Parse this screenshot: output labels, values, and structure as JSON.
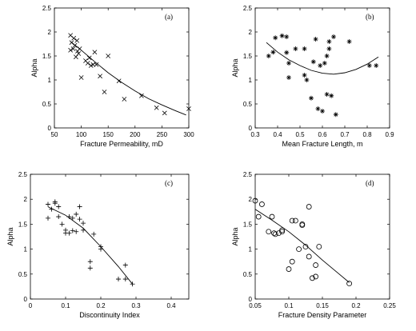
{
  "chart_data": [
    {
      "id": "a",
      "type": "scatter",
      "panel_label": "(a)",
      "xlabel": "Fracture Permeability, mD",
      "ylabel": "Alpha",
      "xlim": [
        50,
        300
      ],
      "ylim": [
        0,
        2.5
      ],
      "xticks": [
        50,
        100,
        150,
        200,
        250,
        300
      ],
      "yticks": [
        0,
        0.5,
        1,
        1.5,
        2,
        2.5
      ],
      "marker": "x",
      "points": [
        [
          80,
          1.93
        ],
        [
          80,
          1.62
        ],
        [
          82,
          1.78
        ],
        [
          85,
          1.65
        ],
        [
          86,
          1.87
        ],
        [
          88,
          1.72
        ],
        [
          90,
          1.48
        ],
        [
          92,
          1.82
        ],
        [
          93,
          1.6
        ],
        [
          95,
          1.55
        ],
        [
          97,
          1.65
        ],
        [
          100,
          1.05
        ],
        [
          108,
          1.4
        ],
        [
          112,
          1.35
        ],
        [
          115,
          1.46
        ],
        [
          118,
          1.3
        ],
        [
          122,
          1.32
        ],
        [
          125,
          1.58
        ],
        [
          128,
          1.32
        ],
        [
          135,
          1.08
        ],
        [
          143,
          0.75
        ],
        [
          150,
          1.5
        ],
        [
          170,
          0.98
        ],
        [
          180,
          0.6
        ],
        [
          212,
          0.67
        ],
        [
          240,
          0.42
        ],
        [
          255,
          0.31
        ],
        [
          300,
          0.4
        ]
      ],
      "fit_line": [
        [
          80,
          1.8
        ],
        [
          100,
          1.62
        ],
        [
          125,
          1.38
        ],
        [
          150,
          1.15
        ],
        [
          175,
          0.95
        ],
        [
          200,
          0.77
        ],
        [
          225,
          0.61
        ],
        [
          250,
          0.48
        ],
        [
          275,
          0.36
        ],
        [
          295,
          0.27
        ]
      ]
    },
    {
      "id": "b",
      "type": "scatter",
      "panel_label": "(b)",
      "xlabel": "Mean Fracture Length, m",
      "ylabel": "Alpha",
      "xlim": [
        0.3,
        0.9
      ],
      "ylim": [
        0,
        2.5
      ],
      "xticks": [
        0.3,
        0.4,
        0.5,
        0.6,
        0.7,
        0.8,
        0.9
      ],
      "yticks": [
        0,
        0.5,
        1,
        1.5,
        2,
        2.5
      ],
      "marker": "*",
      "points": [
        [
          0.36,
          1.5
        ],
        [
          0.38,
          1.58
        ],
        [
          0.39,
          1.88
        ],
        [
          0.42,
          1.92
        ],
        [
          0.44,
          1.9
        ],
        [
          0.44,
          1.57
        ],
        [
          0.45,
          1.05
        ],
        [
          0.45,
          1.35
        ],
        [
          0.48,
          1.65
        ],
        [
          0.52,
          1.65
        ],
        [
          0.52,
          1.1
        ],
        [
          0.53,
          1.0
        ],
        [
          0.55,
          0.62
        ],
        [
          0.56,
          1.38
        ],
        [
          0.57,
          1.85
        ],
        [
          0.58,
          0.4
        ],
        [
          0.59,
          1.3
        ],
        [
          0.6,
          0.35
        ],
        [
          0.61,
          1.35
        ],
        [
          0.62,
          1.5
        ],
        [
          0.62,
          0.7
        ],
        [
          0.63,
          1.65
        ],
        [
          0.63,
          1.8
        ],
        [
          0.64,
          0.67
        ],
        [
          0.65,
          1.9
        ],
        [
          0.66,
          0.28
        ],
        [
          0.72,
          1.8
        ],
        [
          0.81,
          1.3
        ],
        [
          0.84,
          1.3
        ]
      ],
      "fit_line": [
        [
          0.35,
          1.78
        ],
        [
          0.4,
          1.58
        ],
        [
          0.45,
          1.42
        ],
        [
          0.5,
          1.3
        ],
        [
          0.55,
          1.2
        ],
        [
          0.6,
          1.14
        ],
        [
          0.65,
          1.12
        ],
        [
          0.7,
          1.15
        ],
        [
          0.75,
          1.22
        ],
        [
          0.8,
          1.33
        ],
        [
          0.85,
          1.48
        ]
      ]
    },
    {
      "id": "c",
      "type": "scatter",
      "panel_label": "(c)",
      "xlabel": "Discontinuity Index",
      "ylabel": "Alpha",
      "xlim": [
        0,
        0.45
      ],
      "ylim": [
        0,
        2.5
      ],
      "xticks": [
        0,
        0.1,
        0.2,
        0.3,
        0.4
      ],
      "xtick_labels": [
        "0",
        "0.1",
        "0.2",
        "0.3",
        "0.4"
      ],
      "yticks": [
        0,
        0.5,
        1,
        1.5,
        2,
        2.5
      ],
      "marker": "+",
      "points": [
        [
          0.05,
          1.62
        ],
        [
          0.05,
          1.9
        ],
        [
          0.06,
          1.8
        ],
        [
          0.07,
          1.92
        ],
        [
          0.07,
          1.95
        ],
        [
          0.08,
          1.85
        ],
        [
          0.08,
          1.65
        ],
        [
          0.09,
          1.5
        ],
        [
          0.1,
          1.32
        ],
        [
          0.1,
          1.38
        ],
        [
          0.11,
          1.65
        ],
        [
          0.11,
          1.32
        ],
        [
          0.12,
          1.62
        ],
        [
          0.12,
          1.37
        ],
        [
          0.13,
          1.7
        ],
        [
          0.13,
          1.35
        ],
        [
          0.14,
          1.85
        ],
        [
          0.14,
          1.6
        ],
        [
          0.15,
          1.52
        ],
        [
          0.15,
          1.38
        ],
        [
          0.17,
          0.75
        ],
        [
          0.17,
          0.62
        ],
        [
          0.18,
          1.3
        ],
        [
          0.2,
          1.05
        ],
        [
          0.2,
          1.0
        ],
        [
          0.25,
          0.4
        ],
        [
          0.27,
          0.4
        ],
        [
          0.27,
          0.68
        ],
        [
          0.29,
          0.3
        ]
      ],
      "fit_line": [
        [
          0.05,
          1.85
        ],
        [
          0.1,
          1.68
        ],
        [
          0.15,
          1.42
        ],
        [
          0.2,
          1.05
        ],
        [
          0.25,
          0.65
        ],
        [
          0.29,
          0.3
        ]
      ]
    },
    {
      "id": "d",
      "type": "scatter",
      "panel_label": "(d)",
      "xlabel": "Fracture Density Parameter",
      "ylabel": "Alpha",
      "xlim": [
        0.05,
        0.25
      ],
      "ylim": [
        0,
        2.5
      ],
      "xticks": [
        0.05,
        0.1,
        0.15,
        0.2,
        0.25
      ],
      "yticks": [
        0,
        0.5,
        1,
        1.5,
        2,
        2.5
      ],
      "marker": "o",
      "points": [
        [
          0.05,
          1.97
        ],
        [
          0.055,
          1.65
        ],
        [
          0.06,
          1.9
        ],
        [
          0.07,
          1.35
        ],
        [
          0.075,
          1.65
        ],
        [
          0.078,
          1.32
        ],
        [
          0.08,
          1.3
        ],
        [
          0.085,
          1.32
        ],
        [
          0.09,
          1.38
        ],
        [
          0.09,
          1.35
        ],
        [
          0.1,
          0.6
        ],
        [
          0.105,
          0.75
        ],
        [
          0.105,
          1.57
        ],
        [
          0.11,
          1.57
        ],
        [
          0.115,
          1.0
        ],
        [
          0.12,
          1.5
        ],
        [
          0.12,
          1.48
        ],
        [
          0.125,
          1.05
        ],
        [
          0.13,
          0.85
        ],
        [
          0.13,
          1.85
        ],
        [
          0.135,
          0.42
        ],
        [
          0.14,
          0.68
        ],
        [
          0.14,
          0.45
        ],
        [
          0.145,
          1.05
        ],
        [
          0.19,
          0.31
        ]
      ],
      "fit_line": [
        [
          0.05,
          1.8
        ],
        [
          0.075,
          1.58
        ],
        [
          0.1,
          1.35
        ],
        [
          0.125,
          1.08
        ],
        [
          0.15,
          0.78
        ],
        [
          0.175,
          0.5
        ],
        [
          0.19,
          0.33
        ]
      ]
    }
  ]
}
